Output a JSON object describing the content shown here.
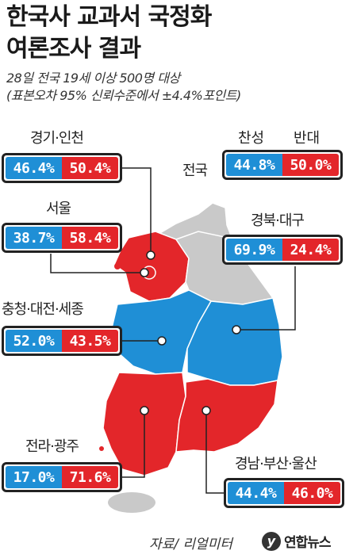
{
  "title_line1": "한국사 교과서 국정화",
  "title_line2": "여론조사 결과",
  "subtitle_line1": "28일 전국 19세 이상 500명 대상",
  "subtitle_line2": "(표본오차 95% 신뢰수준에서 ±4.4%포인트)",
  "legend": {
    "agree": "찬성",
    "oppose": "반대"
  },
  "source": "자료/ 리얼미터",
  "logo": {
    "mark": "y",
    "text": "연합뉴스"
  },
  "colors": {
    "agree": "#1f8fd6",
    "oppose": "#e3262a",
    "map_gray": "#c9c9c9"
  },
  "chart_data": {
    "type": "bar",
    "categories": [
      "전국",
      "경기·인천",
      "서울",
      "충청·대전·세종",
      "전라·광주",
      "경북·대구",
      "경남·부산·울산"
    ],
    "series": [
      {
        "name": "찬성",
        "values": [
          44.8,
          46.4,
          38.7,
          52.0,
          17.0,
          69.9,
          44.4
        ]
      },
      {
        "name": "반대",
        "values": [
          50.0,
          50.4,
          58.4,
          43.5,
          71.6,
          24.4,
          46.0
        ]
      }
    ],
    "labels": {
      "agree": [
        "44.8%",
        "46.4%",
        "38.7%",
        "52.0%",
        "17.0%",
        "69.9%",
        "44.4%"
      ],
      "oppose": [
        "50.0%",
        "50.4%",
        "58.4%",
        "43.5%",
        "71.6%",
        "24.4%",
        "46.0%"
      ]
    }
  }
}
